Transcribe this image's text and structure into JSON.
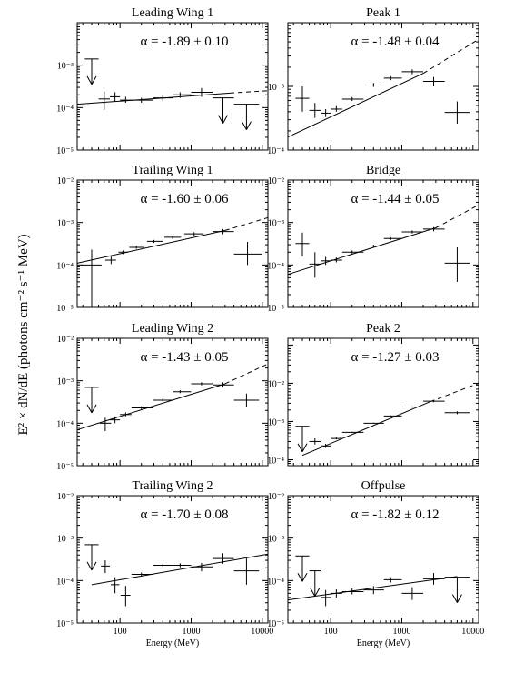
{
  "figure": {
    "ylabel": "E² × dN/dE (photons cm⁻² s⁻¹ MeV)",
    "xlabel": "Energy (MeV)",
    "x_tick_labels": [
      "100",
      "1000",
      "10000"
    ]
  },
  "chart_data": [
    {
      "type": "scatter",
      "title": "Leading Wing 1",
      "annotation": "α = -1.89 ± 0.10",
      "xscale": "log",
      "yscale": "log",
      "xlim": [
        25,
        12000
      ],
      "ylim": [
        1e-05,
        0.01
      ],
      "ytick_labels": [
        "10⁻⁵",
        "10⁻⁴",
        "10⁻³"
      ],
      "fit": {
        "x": [
          25,
          3500
        ],
        "y": [
          0.00012,
          0.00022
        ],
        "dashed_to": {
          "x": 12000,
          "y": 0.00025
        }
      },
      "points": [
        {
          "x": 40,
          "y": 0.0014,
          "upper_limit": true,
          "x_lo": 32,
          "x_hi": 50
        },
        {
          "x": 60,
          "y": 0.00016,
          "y_lo": 9e-05,
          "y_hi": 0.00024,
          "x_lo": 50,
          "x_hi": 72
        },
        {
          "x": 85,
          "y": 0.00018,
          "y_lo": 0.00014,
          "y_hi": 0.00023,
          "x_lo": 72,
          "x_hi": 100
        },
        {
          "x": 120,
          "y": 0.00015,
          "y_lo": 0.00013,
          "y_hi": 0.00018,
          "x_lo": 100,
          "x_hi": 145
        },
        {
          "x": 200,
          "y": 0.00015,
          "y_lo": 0.00013,
          "y_hi": 0.00017,
          "x_lo": 145,
          "x_hi": 290
        },
        {
          "x": 400,
          "y": 0.00017,
          "y_lo": 0.00014,
          "y_hi": 0.0002,
          "x_lo": 290,
          "x_hi": 560
        },
        {
          "x": 700,
          "y": 0.0002,
          "y_lo": 0.00017,
          "y_hi": 0.00023,
          "x_lo": 560,
          "x_hi": 1000
        },
        {
          "x": 1400,
          "y": 0.00023,
          "y_lo": 0.00018,
          "y_hi": 0.00029,
          "x_lo": 1000,
          "x_hi": 2000
        },
        {
          "x": 2800,
          "y": 0.00017,
          "upper_limit": true,
          "x_lo": 2000,
          "x_hi": 4000
        },
        {
          "x": 6000,
          "y": 0.00012,
          "upper_limit": true,
          "x_lo": 4000,
          "x_hi": 9000
        }
      ]
    },
    {
      "type": "scatter",
      "title": "Peak 1",
      "annotation": "α = -1.48 ± 0.04",
      "xscale": "log",
      "yscale": "log",
      "xlim": [
        25,
        12000
      ],
      "ylim": [
        0.0001,
        0.01
      ],
      "ytick_labels": [
        "10⁻⁴",
        "10⁻³"
      ],
      "fit": {
        "x": [
          25,
          2000
        ],
        "y": [
          0.00016,
          0.0016
        ],
        "dashed_to": {
          "x": 12000,
          "y": 0.0055
        }
      },
      "points": [
        {
          "x": 40,
          "y": 0.00065,
          "y_lo": 0.0004,
          "y_hi": 0.001,
          "x_lo": 32,
          "x_hi": 50
        },
        {
          "x": 60,
          "y": 0.00042,
          "y_lo": 0.00032,
          "y_hi": 0.00055,
          "x_lo": 50,
          "x_hi": 72
        },
        {
          "x": 85,
          "y": 0.00038,
          "y_lo": 0.00033,
          "y_hi": 0.00044,
          "x_lo": 72,
          "x_hi": 100
        },
        {
          "x": 120,
          "y": 0.00044,
          "y_lo": 0.0004,
          "y_hi": 0.00049,
          "x_lo": 100,
          "x_hi": 145
        },
        {
          "x": 200,
          "y": 0.00063,
          "y_lo": 0.00059,
          "y_hi": 0.00068,
          "x_lo": 145,
          "x_hi": 290
        },
        {
          "x": 400,
          "y": 0.00105,
          "y_lo": 0.00098,
          "y_hi": 0.00113,
          "x_lo": 290,
          "x_hi": 560
        },
        {
          "x": 700,
          "y": 0.00135,
          "y_lo": 0.00125,
          "y_hi": 0.00145,
          "x_lo": 560,
          "x_hi": 1000
        },
        {
          "x": 1400,
          "y": 0.0017,
          "y_lo": 0.00155,
          "y_hi": 0.00185,
          "x_lo": 1000,
          "x_hi": 2000
        },
        {
          "x": 2800,
          "y": 0.0012,
          "y_lo": 0.001,
          "y_hi": 0.0014,
          "x_lo": 2000,
          "x_hi": 4000
        },
        {
          "x": 6000,
          "y": 0.00039,
          "y_lo": 0.00026,
          "y_hi": 0.00058,
          "x_lo": 4000,
          "x_hi": 9000
        }
      ]
    },
    {
      "type": "scatter",
      "title": "Trailing Wing 1",
      "annotation": "α = -1.60 ± 0.06",
      "xscale": "log",
      "yscale": "log",
      "xlim": [
        25,
        12000
      ],
      "ylim": [
        1e-05,
        0.01
      ],
      "ytick_labels": [
        "10⁻⁵",
        "10⁻⁴",
        "10⁻³",
        "10⁻²"
      ],
      "fit": {
        "x": [
          25,
          3000
        ],
        "y": [
          0.00011,
          0.00065
        ],
        "dashed_to": {
          "x": 12000,
          "y": 0.0013
        }
      },
      "points": [
        {
          "x": 40,
          "y": 0.0001,
          "y_lo": 1e-05,
          "y_hi": 0.00023,
          "x_lo": 28,
          "x_hi": 55
        },
        {
          "x": 75,
          "y": 0.00013,
          "y_lo": 0.000105,
          "y_hi": 0.00016,
          "x_lo": 62,
          "x_hi": 88
        },
        {
          "x": 110,
          "y": 0.0002,
          "y_lo": 0.00018,
          "y_hi": 0.00022,
          "x_lo": 95,
          "x_hi": 130
        },
        {
          "x": 170,
          "y": 0.00026,
          "y_lo": 0.00024,
          "y_hi": 0.00028,
          "x_lo": 135,
          "x_hi": 220
        },
        {
          "x": 300,
          "y": 0.00036,
          "y_lo": 0.00033,
          "y_hi": 0.00039,
          "x_lo": 240,
          "x_hi": 400
        },
        {
          "x": 550,
          "y": 0.00045,
          "y_lo": 0.00041,
          "y_hi": 0.00049,
          "x_lo": 420,
          "x_hi": 720
        },
        {
          "x": 1100,
          "y": 0.00054,
          "y_lo": 0.00049,
          "y_hi": 0.00059,
          "x_lo": 800,
          "x_hi": 1500
        },
        {
          "x": 2800,
          "y": 0.00061,
          "y_lo": 0.00053,
          "y_hi": 0.0007,
          "x_lo": 2000,
          "x_hi": 4000
        },
        {
          "x": 6200,
          "y": 0.00018,
          "y_lo": 0.0001,
          "y_hi": 0.00035,
          "x_lo": 4000,
          "x_hi": 10000
        }
      ]
    },
    {
      "type": "scatter",
      "title": "Bridge",
      "annotation": "α = -1.44 ± 0.05",
      "xscale": "log",
      "yscale": "log",
      "xlim": [
        25,
        12000
      ],
      "ylim": [
        1e-05,
        0.01
      ],
      "ytick_labels": [
        "10⁻⁵",
        "10⁻⁴",
        "10⁻³",
        "10⁻²"
      ],
      "fit": {
        "x": [
          25,
          3000
        ],
        "y": [
          6e-05,
          0.00075
        ],
        "dashed_to": {
          "x": 12000,
          "y": 0.0026
        }
      },
      "points": [
        {
          "x": 40,
          "y": 0.00032,
          "y_lo": 0.00016,
          "y_hi": 0.00058,
          "x_lo": 32,
          "x_hi": 50
        },
        {
          "x": 60,
          "y": 0.000105,
          "y_lo": 5e-05,
          "y_hi": 0.0002,
          "x_lo": 50,
          "x_hi": 72
        },
        {
          "x": 85,
          "y": 0.000125,
          "y_lo": 0.0001,
          "y_hi": 0.000155,
          "x_lo": 72,
          "x_hi": 100
        },
        {
          "x": 120,
          "y": 0.00013,
          "y_lo": 0.000115,
          "y_hi": 0.00015,
          "x_lo": 100,
          "x_hi": 145
        },
        {
          "x": 200,
          "y": 0.0002,
          "y_lo": 0.000185,
          "y_hi": 0.00022,
          "x_lo": 145,
          "x_hi": 290
        },
        {
          "x": 400,
          "y": 0.00028,
          "y_lo": 0.00026,
          "y_hi": 0.0003,
          "x_lo": 290,
          "x_hi": 560
        },
        {
          "x": 700,
          "y": 0.00042,
          "y_lo": 0.00039,
          "y_hi": 0.00045,
          "x_lo": 560,
          "x_hi": 1000
        },
        {
          "x": 1400,
          "y": 0.0006,
          "y_lo": 0.00055,
          "y_hi": 0.00065,
          "x_lo": 1000,
          "x_hi": 2000
        },
        {
          "x": 2800,
          "y": 0.0007,
          "y_lo": 0.00062,
          "y_hi": 0.00078,
          "x_lo": 2000,
          "x_hi": 4000
        },
        {
          "x": 6000,
          "y": 0.00011,
          "y_lo": 4e-05,
          "y_hi": 0.00026,
          "x_lo": 4000,
          "x_hi": 9000
        }
      ]
    },
    {
      "type": "scatter",
      "title": "Leading Wing 2",
      "annotation": "α = -1.43 ± 0.05",
      "xscale": "log",
      "yscale": "log",
      "xlim": [
        25,
        12000
      ],
      "ylim": [
        1e-05,
        0.01
      ],
      "ytick_labels": [
        "10⁻⁵",
        "10⁻⁴",
        "10⁻³",
        "10⁻²"
      ],
      "fit": {
        "x": [
          25,
          3000
        ],
        "y": [
          7e-05,
          0.00085
        ],
        "dashed_to": {
          "x": 12000,
          "y": 0.0025
        }
      },
      "points": [
        {
          "x": 40,
          "y": 0.0007,
          "upper_limit": true,
          "x_lo": 32,
          "x_hi": 50
        },
        {
          "x": 62,
          "y": 0.0001,
          "y_lo": 6.5e-05,
          "y_hi": 0.000135,
          "x_lo": 52,
          "x_hi": 75
        },
        {
          "x": 85,
          "y": 0.00012,
          "y_lo": 0.0001,
          "y_hi": 0.000145,
          "x_lo": 72,
          "x_hi": 100
        },
        {
          "x": 120,
          "y": 0.00016,
          "y_lo": 0.000145,
          "y_hi": 0.00018,
          "x_lo": 100,
          "x_hi": 145
        },
        {
          "x": 200,
          "y": 0.00023,
          "y_lo": 0.00021,
          "y_hi": 0.00025,
          "x_lo": 145,
          "x_hi": 290
        },
        {
          "x": 400,
          "y": 0.00035,
          "y_lo": 0.000325,
          "y_hi": 0.00038,
          "x_lo": 290,
          "x_hi": 560
        },
        {
          "x": 700,
          "y": 0.00055,
          "y_lo": 0.00051,
          "y_hi": 0.0006,
          "x_lo": 560,
          "x_hi": 1000
        },
        {
          "x": 1400,
          "y": 0.00085,
          "y_lo": 0.00078,
          "y_hi": 0.00092,
          "x_lo": 1000,
          "x_hi": 2000
        },
        {
          "x": 2800,
          "y": 0.0008,
          "y_lo": 0.0007,
          "y_hi": 0.00092,
          "x_lo": 2000,
          "x_hi": 4000
        },
        {
          "x": 6000,
          "y": 0.00035,
          "y_lo": 0.00024,
          "y_hi": 0.0005,
          "x_lo": 4000,
          "x_hi": 9000
        }
      ]
    },
    {
      "type": "scatter",
      "title": "Peak 2",
      "annotation": "α = -1.27 ± 0.03",
      "xscale": "log",
      "yscale": "log",
      "xlim": [
        25,
        12000
      ],
      "ylim": [
        7e-05,
        0.15
      ],
      "ytick_labels": [
        "10⁻⁴",
        "10⁻³",
        "10⁻²"
      ],
      "fit": {
        "x": [
          40,
          2500
        ],
        "y": [
          0.00013,
          0.0033
        ],
        "dashed_to": {
          "x": 12000,
          "y": 0.01
        }
      },
      "points": [
        {
          "x": 40,
          "y": 0.00075,
          "upper_limit": true,
          "x_lo": 32,
          "x_hi": 50
        },
        {
          "x": 60,
          "y": 0.0003,
          "y_lo": 0.00025,
          "y_hi": 0.00036,
          "x_lo": 50,
          "x_hi": 72
        },
        {
          "x": 85,
          "y": 0.00023,
          "y_lo": 0.000205,
          "y_hi": 0.00026,
          "x_lo": 72,
          "x_hi": 100
        },
        {
          "x": 120,
          "y": 0.00036,
          "y_lo": 0.00034,
          "y_hi": 0.00038,
          "x_lo": 100,
          "x_hi": 145
        },
        {
          "x": 200,
          "y": 0.00052,
          "y_lo": 0.0005,
          "y_hi": 0.00054,
          "x_lo": 145,
          "x_hi": 290
        },
        {
          "x": 400,
          "y": 0.0009,
          "y_lo": 0.00087,
          "y_hi": 0.00093,
          "x_lo": 290,
          "x_hi": 560
        },
        {
          "x": 700,
          "y": 0.0014,
          "y_lo": 0.00135,
          "y_hi": 0.00145,
          "x_lo": 560,
          "x_hi": 1000
        },
        {
          "x": 1400,
          "y": 0.0024,
          "y_lo": 0.0023,
          "y_hi": 0.0025,
          "x_lo": 1000,
          "x_hi": 2000
        },
        {
          "x": 2800,
          "y": 0.0034,
          "y_lo": 0.0032,
          "y_hi": 0.0036,
          "x_lo": 2000,
          "x_hi": 4000
        },
        {
          "x": 6000,
          "y": 0.0017,
          "y_lo": 0.00155,
          "y_hi": 0.00185,
          "x_lo": 4000,
          "x_hi": 9000
        }
      ]
    },
    {
      "type": "scatter",
      "title": "Trailing Wing 2",
      "annotation": "α = -1.70 ± 0.08",
      "xscale": "log",
      "yscale": "log",
      "xlim": [
        25,
        12000
      ],
      "ylim": [
        1e-05,
        0.01
      ],
      "ytick_labels": [
        "10⁻⁵",
        "10⁻⁴",
        "10⁻³",
        "10⁻²"
      ],
      "fit": {
        "x": [
          40,
          12000
        ],
        "y": [
          8e-05,
          0.00042
        ]
      },
      "points": [
        {
          "x": 40,
          "y": 0.0007,
          "upper_limit": true,
          "x_lo": 32,
          "x_hi": 50
        },
        {
          "x": 62,
          "y": 0.00022,
          "y_lo": 0.00015,
          "y_hi": 0.0003,
          "x_lo": 54,
          "x_hi": 72
        },
        {
          "x": 85,
          "y": 8e-05,
          "y_lo": 5e-05,
          "y_hi": 0.00012,
          "x_lo": 74,
          "x_hi": 98
        },
        {
          "x": 120,
          "y": 4.5e-05,
          "y_lo": 2.5e-05,
          "y_hi": 7.5e-05,
          "x_lo": 102,
          "x_hi": 140
        },
        {
          "x": 200,
          "y": 0.00014,
          "y_lo": 0.000125,
          "y_hi": 0.000155,
          "x_lo": 145,
          "x_hi": 290
        },
        {
          "x": 400,
          "y": 0.00023,
          "y_lo": 0.00021,
          "y_hi": 0.00025,
          "x_lo": 290,
          "x_hi": 560
        },
        {
          "x": 700,
          "y": 0.00023,
          "y_lo": 0.000205,
          "y_hi": 0.000255,
          "x_lo": 560,
          "x_hi": 1000
        },
        {
          "x": 1400,
          "y": 0.00021,
          "y_lo": 0.000165,
          "y_hi": 0.00026,
          "x_lo": 1000,
          "x_hi": 2000
        },
        {
          "x": 2800,
          "y": 0.00033,
          "y_lo": 0.00025,
          "y_hi": 0.00044,
          "x_lo": 2000,
          "x_hi": 4000
        },
        {
          "x": 6000,
          "y": 0.00017,
          "y_lo": 8e-05,
          "y_hi": 0.00033,
          "x_lo": 4000,
          "x_hi": 9000
        }
      ]
    },
    {
      "type": "scatter",
      "title": "Offpulse",
      "annotation": "α = -1.82 ± 0.12",
      "xscale": "log",
      "yscale": "log",
      "xlim": [
        25,
        12000
      ],
      "ylim": [
        1e-05,
        0.01
      ],
      "ytick_labels": [
        "10⁻⁵",
        "10⁻⁴",
        "10⁻³",
        "10⁻²"
      ],
      "fit": {
        "x": [
          25,
          6000
        ],
        "y": [
          3.5e-05,
          0.000125
        ]
      },
      "points": [
        {
          "x": 40,
          "y": 0.00038,
          "upper_limit": true,
          "x_lo": 32,
          "x_hi": 50
        },
        {
          "x": 60,
          "y": 0.00017,
          "upper_limit": true,
          "x_lo": 50,
          "x_hi": 72
        },
        {
          "x": 85,
          "y": 4e-05,
          "y_lo": 2.5e-05,
          "y_hi": 6e-05,
          "x_lo": 72,
          "x_hi": 100
        },
        {
          "x": 120,
          "y": 5e-05,
          "y_lo": 4e-05,
          "y_hi": 6.2e-05,
          "x_lo": 100,
          "x_hi": 145
        },
        {
          "x": 200,
          "y": 5.5e-05,
          "y_lo": 4.7e-05,
          "y_hi": 6.5e-05,
          "x_lo": 145,
          "x_hi": 290
        },
        {
          "x": 400,
          "y": 6e-05,
          "y_lo": 4.8e-05,
          "y_hi": 7.4e-05,
          "x_lo": 290,
          "x_hi": 560
        },
        {
          "x": 700,
          "y": 0.000105,
          "y_lo": 9e-05,
          "y_hi": 0.00012,
          "x_lo": 560,
          "x_hi": 1000
        },
        {
          "x": 1400,
          "y": 5e-05,
          "y_lo": 3.5e-05,
          "y_hi": 7e-05,
          "x_lo": 1000,
          "x_hi": 2000
        },
        {
          "x": 2800,
          "y": 0.00011,
          "y_lo": 8e-05,
          "y_hi": 0.00015,
          "x_lo": 2000,
          "x_hi": 4000
        },
        {
          "x": 6000,
          "y": 0.00012,
          "upper_limit": true,
          "x_lo": 4000,
          "x_hi": 9000
        }
      ]
    }
  ]
}
